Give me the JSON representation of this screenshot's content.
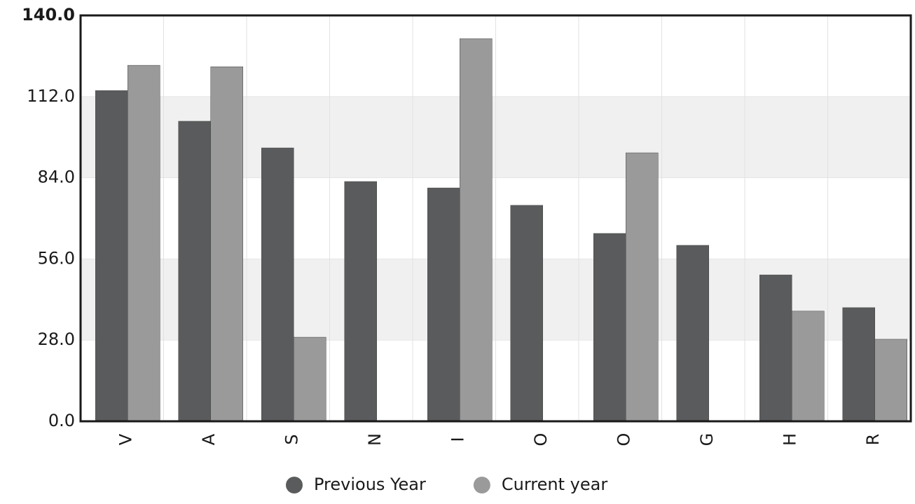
{
  "chart_data": {
    "type": "bar",
    "categories": [
      "V",
      "A",
      "S",
      "N",
      "I",
      "O",
      "O",
      "G",
      "H",
      "R"
    ],
    "series": [
      {
        "name": "Previous Year",
        "color": "#5a5b5c",
        "values": [
          114.1,
          103.5,
          94.3,
          82.7,
          80.5,
          74.5,
          64.8,
          60.7,
          50.5,
          39.2
        ]
      },
      {
        "name": "Current year",
        "color": "#9a9a9a",
        "values": [
          122.8,
          122.3,
          29.0,
          null,
          132.0,
          null,
          92.6,
          null,
          38.0,
          28.3
        ]
      }
    ],
    "ylim": [
      0,
      140
    ],
    "yticks": [
      {
        "value": 0,
        "label": "0.0"
      },
      {
        "value": 28,
        "label": "28.0"
      },
      {
        "value": 56,
        "label": "56.0"
      },
      {
        "value": 84,
        "label": "84.0"
      },
      {
        "value": 112,
        "label": "112.0"
      },
      {
        "value": 140,
        "label": "140.0"
      }
    ],
    "grid": true,
    "legend": "bottom"
  }
}
